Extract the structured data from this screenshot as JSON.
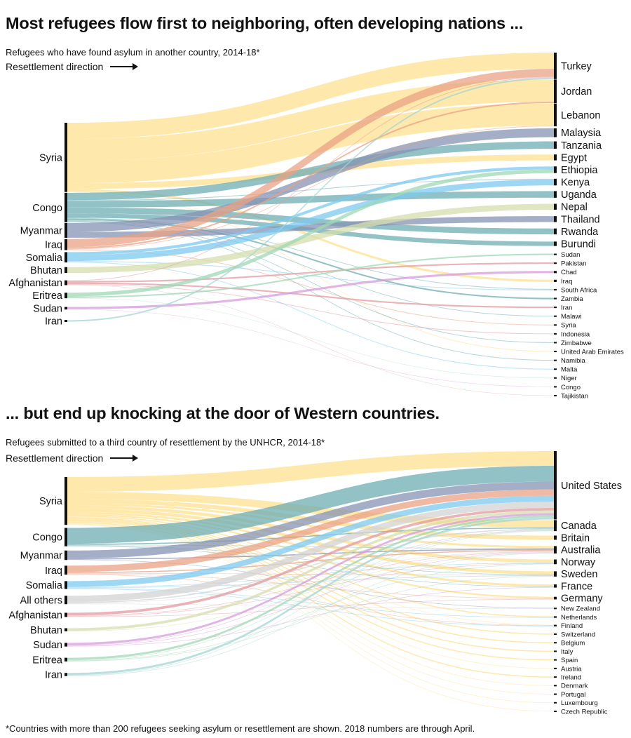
{
  "footnote": "*Countries with more than 200 refugees seeking asylum or resettlement are shown. 2018 numbers are through April.",
  "chart_data": [
    {
      "type": "sankey",
      "title": "Most refugees flow first to neighboring, often developing nations ...",
      "subtitle": "Refugees who have found asylum in another country, 2014-18*",
      "direction_label": "Resettlement direction",
      "sources": [
        {
          "name": "Syria",
          "color": "#fde08f"
        },
        {
          "name": "Congo",
          "color": "#6eaeb3"
        },
        {
          "name": "Myanmar",
          "color": "#8593b3"
        },
        {
          "name": "Iraq",
          "color": "#e9a184"
        },
        {
          "name": "Somalia",
          "color": "#7ccaf0"
        },
        {
          "name": "Bhutan",
          "color": "#d6deae"
        },
        {
          "name": "Afghanistan",
          "color": "#e29a9f"
        },
        {
          "name": "Eritrea",
          "color": "#9fd8b4"
        },
        {
          "name": "Sudan",
          "color": "#d69bdc"
        },
        {
          "name": "Iran",
          "color": "#a3d6d3"
        }
      ],
      "targets": [
        "Turkey",
        "Jordan",
        "Lebanon",
        "Malaysia",
        "Tanzania",
        "Egypt",
        "Ethiopia",
        "Kenya",
        "Uganda",
        "Nepal",
        "Thailand",
        "Rwanda",
        "Burundi",
        "Sudan",
        "Pakistan",
        "Chad",
        "Iraq",
        "South Africa",
        "Zambia",
        "Iran",
        "Malawi",
        "Syria",
        "Indonesia",
        "Zimbabwe",
        "United Arab Emirates",
        "Namibia",
        "Malta",
        "Niger",
        "Congo",
        "Tajikistan"
      ],
      "flows": [
        [
          "Syria",
          "Turkey",
          22
        ],
        [
          "Syria",
          "Jordan",
          30
        ],
        [
          "Syria",
          "Lebanon",
          30
        ],
        [
          "Syria",
          "Egypt",
          8
        ],
        [
          "Syria",
          "Iraq",
          3
        ],
        [
          "Syria",
          "United Arab Emirates",
          1
        ],
        [
          "Congo",
          "Tanzania",
          10
        ],
        [
          "Congo",
          "Uganda",
          9
        ],
        [
          "Congo",
          "Rwanda",
          8
        ],
        [
          "Congo",
          "Burundi",
          6
        ],
        [
          "Congo",
          "Zambia",
          2
        ],
        [
          "Congo",
          "Malawi",
          1
        ],
        [
          "Congo",
          "Zimbabwe",
          1
        ],
        [
          "Congo",
          "Namibia",
          1
        ],
        [
          "Congo",
          "South Africa",
          1
        ],
        [
          "Congo",
          "Kenya",
          1
        ],
        [
          "Myanmar",
          "Malaysia",
          12
        ],
        [
          "Myanmar",
          "Thailand",
          8
        ],
        [
          "Iraq",
          "Turkey",
          11
        ],
        [
          "Iraq",
          "Jordan",
          2
        ],
        [
          "Iraq",
          "Lebanon",
          1
        ],
        [
          "Iraq",
          "Syria",
          1
        ],
        [
          "Somalia",
          "Kenya",
          8
        ],
        [
          "Somalia",
          "Ethiopia",
          4
        ],
        [
          "Somalia",
          "South Africa",
          1
        ],
        [
          "Somalia",
          "Malta",
          1
        ],
        [
          "Bhutan",
          "Nepal",
          8
        ],
        [
          "Afghanistan",
          "Pakistan",
          2
        ],
        [
          "Afghanistan",
          "Iran",
          2
        ],
        [
          "Afghanistan",
          "Turkey",
          1
        ],
        [
          "Afghanistan",
          "Indonesia",
          1
        ],
        [
          "Afghanistan",
          "Tajikistan",
          0.5
        ],
        [
          "Eritrea",
          "Ethiopia",
          5
        ],
        [
          "Eritrea",
          "Sudan",
          2
        ],
        [
          "Eritrea",
          "Niger",
          0.5
        ],
        [
          "Sudan",
          "Chad",
          3
        ],
        [
          "Sudan",
          "Congo",
          0.5
        ],
        [
          "Iran",
          "Turkey",
          2
        ]
      ]
    },
    {
      "type": "sankey",
      "title": "... but end up knocking at the door of Western countries.",
      "subtitle": "Refugees submitted to a third country of resettlement by the UNHCR, 2014-18*",
      "direction_label": "Resettlement direction",
      "sources": [
        {
          "name": "Syria",
          "color": "#fde08f"
        },
        {
          "name": "Congo",
          "color": "#6eaeb3"
        },
        {
          "name": "Myanmar",
          "color": "#8593b3"
        },
        {
          "name": "Iraq",
          "color": "#e9a184"
        },
        {
          "name": "Somalia",
          "color": "#7ccaf0"
        },
        {
          "name": "All others",
          "color": "#d3d3d3"
        },
        {
          "name": "Afghanistan",
          "color": "#e29a9f"
        },
        {
          "name": "Bhutan",
          "color": "#d6deae"
        },
        {
          "name": "Sudan",
          "color": "#d69bdc"
        },
        {
          "name": "Eritrea",
          "color": "#9fd8b4"
        },
        {
          "name": "Iran",
          "color": "#a3d6d3"
        }
      ],
      "targets": [
        "United States",
        "Canada",
        "Britain",
        "Australia",
        "Norway",
        "Sweden",
        "France",
        "Germany",
        "New Zealand",
        "Netherlands",
        "Finland",
        "Switzerland",
        "Belgium",
        "Italy",
        "Spain",
        "Austria",
        "Ireland",
        "Denmark",
        "Portugal",
        "Luxembourg",
        "Czech Republic"
      ],
      "flows": [
        [
          "Syria",
          "United States",
          28
        ],
        [
          "Syria",
          "Canada",
          14
        ],
        [
          "Syria",
          "Britain",
          8
        ],
        [
          "Syria",
          "Australia",
          4
        ],
        [
          "Syria",
          "Norway",
          6
        ],
        [
          "Syria",
          "Sweden",
          6
        ],
        [
          "Syria",
          "France",
          4
        ],
        [
          "Syria",
          "Germany",
          3
        ],
        [
          "Syria",
          "Netherlands",
          2
        ],
        [
          "Syria",
          "Finland",
          1
        ],
        [
          "Syria",
          "Switzerland",
          2
        ],
        [
          "Syria",
          "Belgium",
          2
        ],
        [
          "Syria",
          "Italy",
          2
        ],
        [
          "Syria",
          "Spain",
          2
        ],
        [
          "Syria",
          "Austria",
          1
        ],
        [
          "Syria",
          "Ireland",
          2
        ],
        [
          "Syria",
          "Denmark",
          1
        ],
        [
          "Syria",
          "Portugal",
          1
        ],
        [
          "Syria",
          "Luxembourg",
          1
        ],
        [
          "Syria",
          "Czech Republic",
          1
        ],
        [
          "Congo",
          "United States",
          30
        ],
        [
          "Congo",
          "Canada",
          2
        ],
        [
          "Congo",
          "Australia",
          1
        ],
        [
          "Congo",
          "Sweden",
          1
        ],
        [
          "Congo",
          "France",
          1
        ],
        [
          "Myanmar",
          "United States",
          15
        ],
        [
          "Myanmar",
          "Australia",
          2
        ],
        [
          "Myanmar",
          "New Zealand",
          1
        ],
        [
          "Iraq",
          "United States",
          12
        ],
        [
          "Iraq",
          "Australia",
          2
        ],
        [
          "Iraq",
          "Sweden",
          1
        ],
        [
          "Iraq",
          "Finland",
          1
        ],
        [
          "Iraq",
          "Germany",
          1
        ],
        [
          "Somalia",
          "United States",
          11
        ],
        [
          "Somalia",
          "Sweden",
          1
        ],
        [
          "Somalia",
          "Norway",
          1
        ],
        [
          "Somalia",
          "Finland",
          1
        ],
        [
          "Somalia",
          "Netherlands",
          1
        ],
        [
          "All others",
          "United States",
          12
        ],
        [
          "All others",
          "Canada",
          2
        ],
        [
          "All others",
          "Australia",
          1
        ],
        [
          "All others",
          "New Zealand",
          1
        ],
        [
          "Afghanistan",
          "United States",
          5
        ],
        [
          "Afghanistan",
          "Australia",
          1
        ],
        [
          "Afghanistan",
          "Norway",
          1
        ],
        [
          "Afghanistan",
          "Germany",
          1
        ],
        [
          "Bhutan",
          "United States",
          5
        ],
        [
          "Bhutan",
          "Australia",
          1
        ],
        [
          "Sudan",
          "United States",
          4
        ],
        [
          "Sudan",
          "Australia",
          1
        ],
        [
          "Sudan",
          "France",
          1
        ],
        [
          "Sudan",
          "Canada",
          1
        ],
        [
          "Eritrea",
          "United States",
          4
        ],
        [
          "Eritrea",
          "Canada",
          1
        ],
        [
          "Eritrea",
          "Sweden",
          1
        ],
        [
          "Eritrea",
          "Norway",
          1
        ],
        [
          "Iran",
          "United States",
          4
        ],
        [
          "Iran",
          "Canada",
          1
        ],
        [
          "Iran",
          "Australia",
          1
        ]
      ]
    }
  ]
}
